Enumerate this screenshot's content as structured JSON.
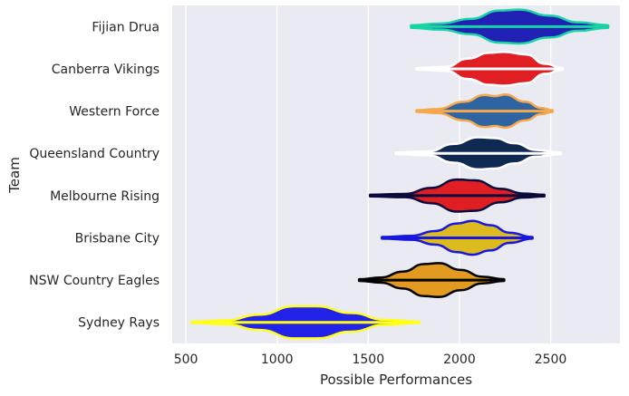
{
  "chart_data": {
    "type": "violin",
    "orientation": "horizontal",
    "xlabel": "Possible Performances",
    "ylabel": "Team",
    "xlim": [
      425,
      2880
    ],
    "xticks": [
      500,
      1000,
      1500,
      2000,
      2500
    ],
    "grid": true,
    "background": "#EAEAF2",
    "gridColor": "#FFFFFF",
    "teams": [
      {
        "name": "Fijian Drua",
        "fill": "#2121B5",
        "edge": "#18D4A5",
        "min": 1735,
        "max": 2815,
        "median": 2275,
        "shape": [
          [
            0,
            0.08
          ],
          [
            0.15,
            0.18
          ],
          [
            0.3,
            0.45
          ],
          [
            0.45,
            0.95
          ],
          [
            0.55,
            1.0
          ],
          [
            0.7,
            0.65
          ],
          [
            0.85,
            0.25
          ],
          [
            1,
            0.08
          ]
        ]
      },
      {
        "name": "Canberra Vikings",
        "fill": "#E01F25",
        "edge": "#FFFFFF",
        "min": 1765,
        "max": 2565,
        "median": 2220,
        "shape": [
          [
            0,
            0.05
          ],
          [
            0.2,
            0.12
          ],
          [
            0.35,
            0.6
          ],
          [
            0.5,
            0.95
          ],
          [
            0.6,
            1.0
          ],
          [
            0.75,
            0.85
          ],
          [
            0.88,
            0.3
          ],
          [
            1,
            0.05
          ]
        ]
      },
      {
        "name": "Western Force",
        "fill": "#2E64A2",
        "edge": "#F5A84C",
        "min": 1765,
        "max": 2510,
        "median": 2200,
        "shape": [
          [
            0,
            0.05
          ],
          [
            0.15,
            0.12
          ],
          [
            0.35,
            0.55
          ],
          [
            0.5,
            0.95
          ],
          [
            0.58,
            0.88
          ],
          [
            0.65,
            0.98
          ],
          [
            0.8,
            0.55
          ],
          [
            0.92,
            0.18
          ],
          [
            1,
            0.05
          ]
        ]
      },
      {
        "name": "Queensland Country",
        "fill": "#0F2A52",
        "edge": "#FFFFFF",
        "min": 1650,
        "max": 2555,
        "median": 2110,
        "shape": [
          [
            0,
            0.05
          ],
          [
            0.2,
            0.12
          ],
          [
            0.35,
            0.55
          ],
          [
            0.5,
            0.95
          ],
          [
            0.6,
            0.9
          ],
          [
            0.72,
            0.6
          ],
          [
            0.85,
            0.2
          ],
          [
            1,
            0.05
          ]
        ]
      },
      {
        "name": "Melbourne Rising",
        "fill": "#E01F25",
        "edge": "#0B0B3B",
        "min": 1510,
        "max": 2465,
        "median": 2020,
        "shape": [
          [
            0,
            0.05
          ],
          [
            0.2,
            0.1
          ],
          [
            0.35,
            0.45
          ],
          [
            0.5,
            0.95
          ],
          [
            0.6,
            0.9
          ],
          [
            0.75,
            0.4
          ],
          [
            0.88,
            0.12
          ],
          [
            1,
            0.05
          ]
        ]
      },
      {
        "name": "Brisbane City",
        "fill": "#DDBA1E",
        "edge": "#1717E0",
        "min": 1575,
        "max": 2400,
        "median": 2020,
        "shape": [
          [
            0,
            0.05
          ],
          [
            0.2,
            0.12
          ],
          [
            0.35,
            0.4
          ],
          [
            0.5,
            0.85
          ],
          [
            0.6,
            1.0
          ],
          [
            0.72,
            0.75
          ],
          [
            0.85,
            0.3
          ],
          [
            1,
            0.05
          ]
        ]
      },
      {
        "name": "NSW Country Eagles",
        "fill": "#E29A20",
        "edge": "#000000",
        "min": 1450,
        "max": 2245,
        "median": 1880,
        "shape": [
          [
            0,
            0.05
          ],
          [
            0.15,
            0.15
          ],
          [
            0.3,
            0.5
          ],
          [
            0.45,
            0.95
          ],
          [
            0.55,
            1.0
          ],
          [
            0.7,
            0.6
          ],
          [
            0.85,
            0.2
          ],
          [
            1,
            0.05
          ]
        ]
      },
      {
        "name": "Sydney Rays",
        "fill": "#2222E8",
        "edge": "#FFFF1A",
        "min": 530,
        "max": 1780,
        "median": 1130,
        "shape": [
          [
            0,
            0.04
          ],
          [
            0.15,
            0.12
          ],
          [
            0.3,
            0.45
          ],
          [
            0.45,
            0.95
          ],
          [
            0.55,
            0.95
          ],
          [
            0.7,
            0.55
          ],
          [
            0.85,
            0.15
          ],
          [
            1,
            0.04
          ]
        ]
      }
    ]
  }
}
